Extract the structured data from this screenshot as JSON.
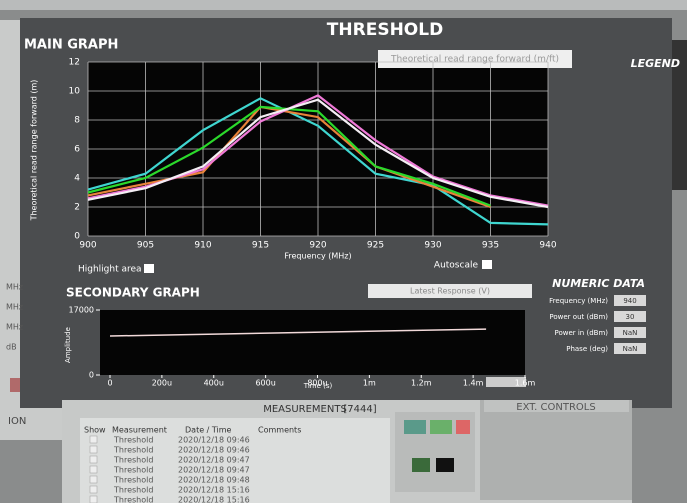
{
  "title": "THRESHOLD",
  "legend_title": "LEGEND",
  "main_graph": {
    "title": "MAIN GRAPH",
    "plot_selector": "Theoretical read range forward (m/ft)",
    "ylabel": "Theoretical read range forward (m)",
    "xlabel": "Frequency (MHz)",
    "x": [
      900,
      905,
      910,
      915,
      920,
      925,
      930,
      935,
      940
    ],
    "xlim": [
      900,
      940
    ],
    "xticks": [
      900,
      905,
      910,
      915,
      920,
      925,
      930,
      935,
      940
    ],
    "ylim": [
      0,
      12
    ],
    "yticks": [
      0,
      2,
      4,
      6,
      8,
      10,
      12
    ],
    "grid": true,
    "series": [
      {
        "color": "#3fd6d0",
        "values": [
          3.2,
          4.3,
          7.3,
          9.5,
          7.6,
          4.3,
          3.5,
          0.9,
          0.8
        ]
      },
      {
        "color": "#e8833a",
        "values": [
          2.8,
          3.6,
          4.4,
          8.9,
          8.2,
          4.8,
          3.4,
          2.0,
          null
        ]
      },
      {
        "color": "#2bd92b",
        "values": [
          3.0,
          4.0,
          6.1,
          8.9,
          8.6,
          4.8,
          3.6,
          2.1,
          null
        ]
      },
      {
        "color": "#f07ad8",
        "values": [
          2.6,
          3.4,
          4.6,
          7.9,
          9.7,
          6.6,
          4.1,
          2.8,
          2.1
        ]
      },
      {
        "color": "#f4eef4",
        "values": [
          2.5,
          3.3,
          4.8,
          8.2,
          9.4,
          6.3,
          4.0,
          2.7,
          2.0
        ]
      }
    ]
  },
  "highlight_label": "Highlight area",
  "autoscale_label": "Autoscale",
  "secondary_graph": {
    "title": "SECONDARY GRAPH",
    "plot_selector": "Latest Response (V)",
    "ylabel": "Amplitude",
    "xlabel": "Time (s)",
    "ylim": [
      0,
      17000
    ],
    "yticks": [
      0,
      17000
    ],
    "xlim": [
      0,
      0.0016
    ],
    "xticks": [
      {
        "value": 0,
        "label": "0"
      },
      {
        "value": 0.0002,
        "label": "200u"
      },
      {
        "value": 0.0004,
        "label": "400u"
      },
      {
        "value": 0.0006,
        "label": "600u"
      },
      {
        "value": 0.0008,
        "label": "800u"
      },
      {
        "value": 0.001,
        "label": "1m"
      },
      {
        "value": 0.0012,
        "label": "1.2m"
      },
      {
        "value": 0.0014,
        "label": "1.4m"
      },
      {
        "value": 0.0016,
        "label": "1.6m"
      }
    ],
    "series": [
      {
        "color": "#f2dada",
        "x": [
          0,
          0.00145
        ],
        "values": [
          10200,
          12000
        ]
      }
    ]
  },
  "numeric_data": {
    "title": "NUMERIC DATA",
    "fields": [
      {
        "label": "Frequency (MHz)",
        "value": "940"
      },
      {
        "label": "Power out (dBm)",
        "value": "30"
      },
      {
        "label": "Power in (dBm)",
        "value": "NaN"
      },
      {
        "label": "Phase (deg)",
        "value": "NaN"
      }
    ]
  },
  "left_units": [
    "MHz",
    "MHz",
    "MHz",
    "dB"
  ],
  "left_section": "ION",
  "measurements": {
    "title": "MEASUREMENTS",
    "count": "[7444]",
    "columns": [
      "Show",
      "Measurement",
      "Date / Time",
      "Comments"
    ],
    "rows": [
      [
        "Threshold",
        "2020/12/18 09:46"
      ],
      [
        "Threshold",
        "2020/12/18 09:46"
      ],
      [
        "Threshold",
        "2020/12/18 09:47"
      ],
      [
        "Threshold",
        "2020/12/18 09:47"
      ],
      [
        "Threshold",
        "2020/12/18 09:48"
      ],
      [
        "Threshold",
        "2020/12/18 15:16"
      ],
      [
        "Threshold",
        "2020/12/18 15:16"
      ]
    ]
  },
  "ext_controls": "EXT. CONTROLS"
}
